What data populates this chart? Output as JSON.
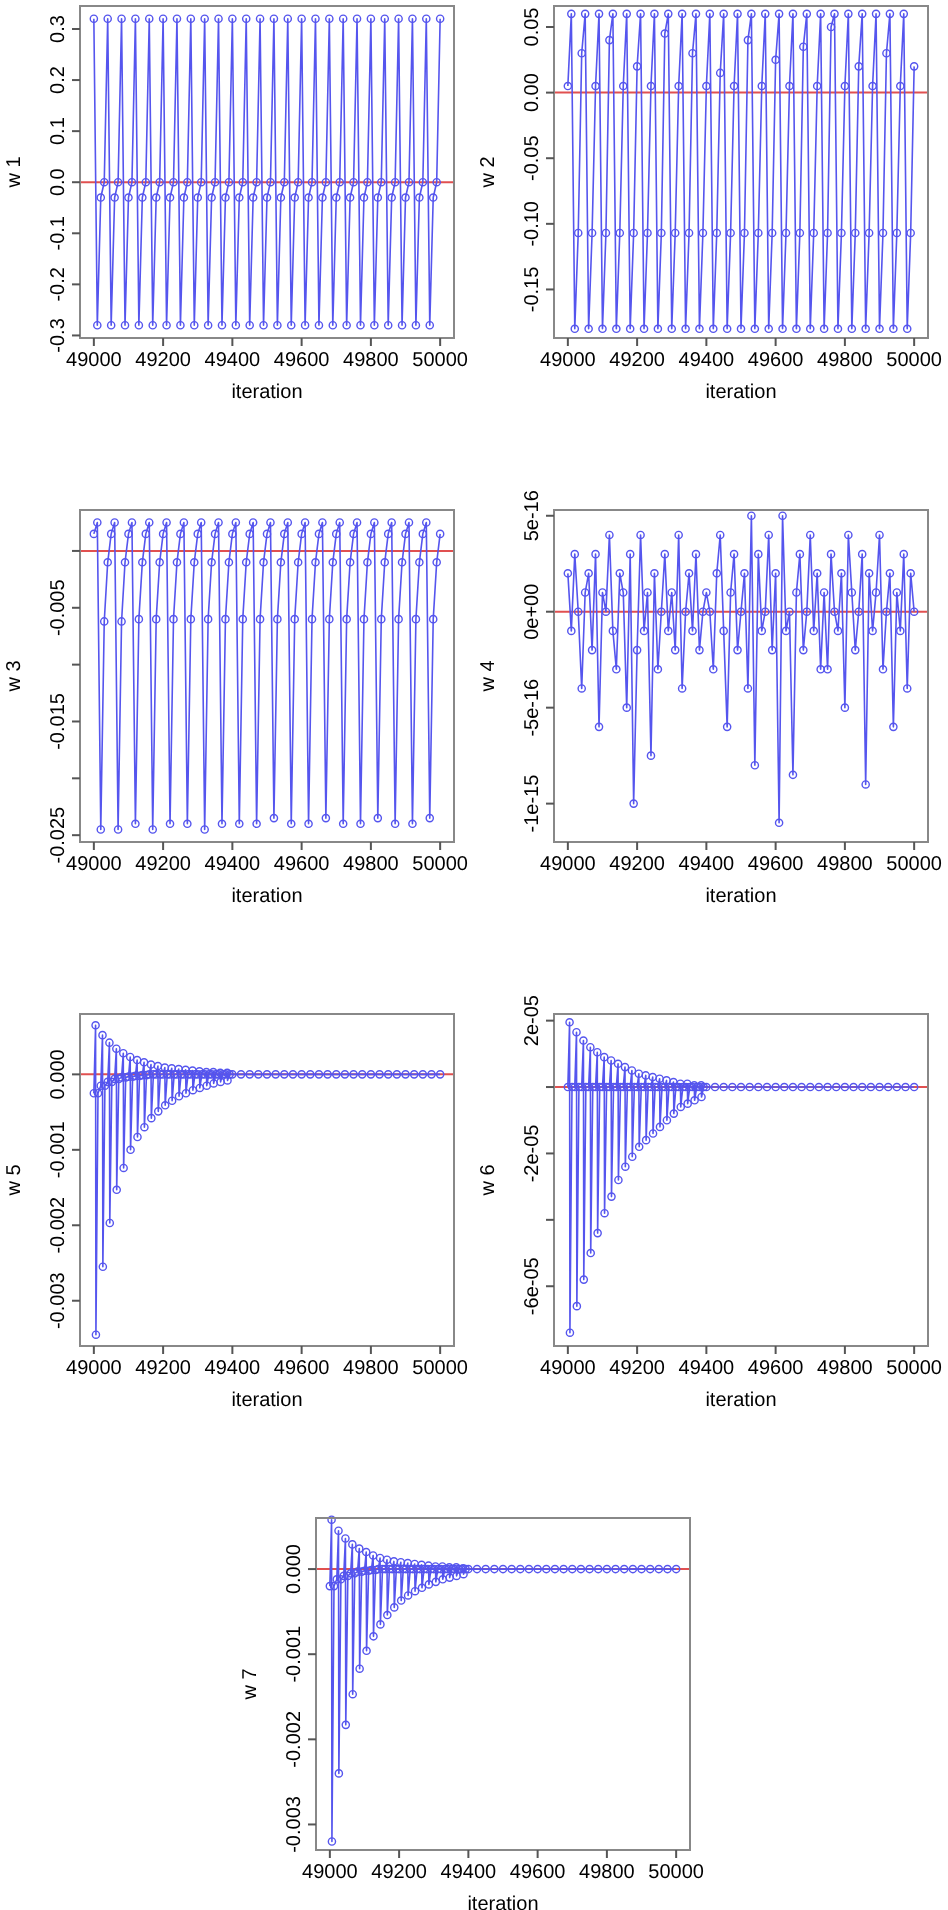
{
  "chart_data": [
    {
      "type": "line",
      "xlabel": "iteration",
      "ylabel": "w 1",
      "color": "#5555ee",
      "marker": "circle",
      "xlim": [
        48960,
        50040
      ],
      "xticks": [
        49000,
        49200,
        49400,
        49600,
        49800,
        50000
      ],
      "ylim": [
        -0.305,
        0.345
      ],
      "yticks": [
        {
          "value": -0.3,
          "label": "-0.3"
        },
        {
          "value": -0.2,
          "label": "-0.2"
        },
        {
          "value": -0.1,
          "label": "-0.1"
        },
        {
          "value": 0,
          "label": "0.0"
        },
        0.1,
        0.2,
        0.3
      ],
      "ref_lines": [
        {
          "axis": "y",
          "value": 0,
          "color": "#e05050"
        }
      ],
      "x": [
        49000,
        49010,
        49020,
        49030,
        49040,
        49050,
        49060,
        49070,
        49080,
        49090,
        49100,
        49110,
        49120,
        49130,
        49140,
        49150,
        49160,
        49170,
        49180,
        49190,
        49200,
        49210,
        49220,
        49230,
        49240,
        49250,
        49260,
        49270,
        49280,
        49290,
        49300,
        49310,
        49320,
        49330,
        49340,
        49350,
        49360,
        49370,
        49380,
        49390,
        49400,
        49410,
        49420,
        49430,
        49440,
        49450,
        49460,
        49470,
        49480,
        49490,
        49500,
        49510,
        49520,
        49530,
        49540,
        49550,
        49560,
        49570,
        49580,
        49590,
        49600,
        49610,
        49620,
        49630,
        49640,
        49650,
        49660,
        49670,
        49680,
        49690,
        49700,
        49710,
        49720,
        49730,
        49740,
        49750,
        49760,
        49770,
        49780,
        49790,
        49800,
        49810,
        49820,
        49830,
        49840,
        49850,
        49860,
        49870,
        49880,
        49890,
        49900,
        49910,
        49920,
        49930,
        49940,
        49950,
        49960,
        49970,
        49980,
        49990,
        50000
      ],
      "values": [
        0.32,
        -0.28,
        -0.03,
        0,
        0.32,
        -0.28,
        -0.03,
        0,
        0.32,
        -0.28,
        -0.03,
        0,
        0.32,
        -0.28,
        -0.03,
        0,
        0.32,
        -0.28,
        -0.03,
        0,
        0.32,
        -0.28,
        -0.03,
        0,
        0.32,
        -0.28,
        -0.03,
        0,
        0.32,
        -0.28,
        -0.03,
        0,
        0.32,
        -0.28,
        -0.03,
        0,
        0.32,
        -0.28,
        -0.03,
        0,
        0.32,
        -0.28,
        -0.03,
        0,
        0.32,
        -0.28,
        -0.03,
        0,
        0.32,
        -0.28,
        -0.03,
        0,
        0.32,
        -0.28,
        -0.03,
        0,
        0.32,
        -0.28,
        -0.03,
        0,
        0.32,
        -0.28,
        -0.03,
        0,
        0.32,
        -0.28,
        -0.03,
        0,
        0.32,
        -0.28,
        -0.03,
        0,
        0.32,
        -0.28,
        -0.03,
        0,
        0.32,
        -0.28,
        -0.03,
        0,
        0.32,
        -0.28,
        -0.03,
        0,
        0.32,
        -0.28,
        -0.03,
        0,
        0.32,
        -0.28,
        -0.03,
        0,
        0.32,
        -0.28,
        -0.03,
        0,
        0.32,
        -0.28,
        -0.03,
        0,
        0.32
      ]
    },
    {
      "type": "line",
      "xlabel": "iteration",
      "ylabel": "w 2",
      "color": "#5555ee",
      "marker": "circle",
      "xlim": [
        48960,
        50040
      ],
      "xticks": [
        49000,
        49200,
        49400,
        49600,
        49800,
        50000
      ],
      "ylim": [
        -0.187,
        0.066
      ],
      "yticks": [
        {
          "value": -0.15,
          "label": "-0.15"
        },
        {
          "value": -0.1,
          "label": "-0.10"
        },
        {
          "value": -0.05,
          "label": "-0.05"
        },
        {
          "value": 0,
          "label": "0.00"
        },
        0.05
      ],
      "ref_lines": [
        {
          "axis": "y",
          "value": 0,
          "color": "#e05050"
        }
      ],
      "x": [
        49000,
        49010,
        49020,
        49030,
        49040,
        49050,
        49060,
        49070,
        49080,
        49090,
        49100,
        49110,
        49120,
        49130,
        49140,
        49150,
        49160,
        49170,
        49180,
        49190,
        49200,
        49210,
        49220,
        49230,
        49240,
        49250,
        49260,
        49270,
        49280,
        49290,
        49300,
        49310,
        49320,
        49330,
        49340,
        49350,
        49360,
        49370,
        49380,
        49390,
        49400,
        49410,
        49420,
        49430,
        49440,
        49450,
        49460,
        49470,
        49480,
        49490,
        49500,
        49510,
        49520,
        49530,
        49540,
        49550,
        49560,
        49570,
        49580,
        49590,
        49600,
        49610,
        49620,
        49630,
        49640,
        49650,
        49660,
        49670,
        49680,
        49690,
        49700,
        49710,
        49720,
        49730,
        49740,
        49750,
        49760,
        49770,
        49780,
        49790,
        49800,
        49810,
        49820,
        49830,
        49840,
        49850,
        49860,
        49870,
        49880,
        49890,
        49900,
        49910,
        49920,
        49930,
        49940,
        49950,
        49960,
        49970,
        49980,
        49990,
        50000
      ],
      "values": [
        0.005,
        0.06,
        -0.18,
        -0.107,
        0.03,
        0.06,
        -0.18,
        -0.107,
        0.005,
        0.06,
        -0.18,
        -0.107,
        0.04,
        0.06,
        -0.18,
        -0.107,
        0.005,
        0.06,
        -0.18,
        -0.107,
        0.02,
        0.06,
        -0.18,
        -0.107,
        0.005,
        0.06,
        -0.18,
        -0.107,
        0.045,
        0.06,
        -0.18,
        -0.107,
        0.005,
        0.06,
        -0.18,
        -0.107,
        0.03,
        0.06,
        -0.18,
        -0.107,
        0.005,
        0.06,
        -0.18,
        -0.107,
        0.015,
        0.06,
        -0.18,
        -0.107,
        0.005,
        0.06,
        -0.18,
        -0.107,
        0.04,
        0.06,
        -0.18,
        -0.107,
        0.005,
        0.06,
        -0.18,
        -0.107,
        0.025,
        0.06,
        -0.18,
        -0.107,
        0.005,
        0.06,
        -0.18,
        -0.107,
        0.035,
        0.06,
        -0.18,
        -0.107,
        0.005,
        0.06,
        -0.18,
        -0.107,
        0.05,
        0.06,
        -0.18,
        -0.107,
        0.005,
        0.06,
        -0.18,
        -0.107,
        0.02,
        0.06,
        -0.18,
        -0.107,
        0.005,
        0.06,
        -0.18,
        -0.107,
        0.03,
        0.06,
        -0.18,
        -0.107,
        0.005,
        0.06,
        -0.18,
        -0.107,
        0.02
      ]
    },
    {
      "type": "line",
      "xlabel": "iteration",
      "ylabel": "w 3",
      "color": "#5555ee",
      "marker": "circle",
      "xlim": [
        48960,
        50040
      ],
      "xticks": [
        49000,
        49200,
        49400,
        49600,
        49800,
        50000
      ],
      "ylim": [
        -0.0256,
        0.0036
      ],
      "yticks": [
        {
          "value": -0.025,
          "label": "-0.025"
        },
        {
          "value": -0.02,
          "label": null
        },
        {
          "value": -0.015,
          "label": "-0.015"
        },
        {
          "value": -0.01,
          "label": null
        },
        {
          "value": -0.005,
          "label": "-0.005"
        },
        {
          "value": 0,
          "label": null
        }
      ],
      "ref_lines": [
        {
          "axis": "y",
          "value": 0,
          "color": "#e05050"
        }
      ],
      "x": [
        49000,
        49010,
        49020,
        49030,
        49040,
        49050,
        49060,
        49070,
        49080,
        49090,
        49100,
        49110,
        49120,
        49130,
        49140,
        49150,
        49160,
        49170,
        49180,
        49190,
        49200,
        49210,
        49220,
        49230,
        49240,
        49250,
        49260,
        49270,
        49280,
        49290,
        49300,
        49310,
        49320,
        49330,
        49340,
        49350,
        49360,
        49370,
        49380,
        49390,
        49400,
        49410,
        49420,
        49430,
        49440,
        49450,
        49460,
        49470,
        49480,
        49490,
        49500,
        49510,
        49520,
        49530,
        49540,
        49550,
        49560,
        49570,
        49580,
        49590,
        49600,
        49610,
        49620,
        49630,
        49640,
        49650,
        49660,
        49670,
        49680,
        49690,
        49700,
        49710,
        49720,
        49730,
        49740,
        49750,
        49760,
        49770,
        49780,
        49790,
        49800,
        49810,
        49820,
        49830,
        49840,
        49850,
        49860,
        49870,
        49880,
        49890,
        49900,
        49910,
        49920,
        49930,
        49940,
        49950,
        49960,
        49970,
        49980,
        49990,
        50000
      ],
      "values": [
        0.0015,
        0.0025,
        -0.0245,
        -0.0062,
        -0.001,
        0.0015,
        0.0025,
        -0.0245,
        -0.0062,
        -0.001,
        0.0015,
        0.0025,
        -0.024,
        -0.006,
        -0.001,
        0.0015,
        0.0025,
        -0.0245,
        -0.006,
        -0.001,
        0.0015,
        0.0025,
        -0.024,
        -0.006,
        -0.001,
        0.0015,
        0.0025,
        -0.024,
        -0.006,
        -0.001,
        0.0015,
        0.0025,
        -0.0245,
        -0.006,
        -0.001,
        0.0015,
        0.0025,
        -0.024,
        -0.006,
        -0.001,
        0.0015,
        0.0025,
        -0.024,
        -0.006,
        -0.001,
        0.0015,
        0.0025,
        -0.024,
        -0.006,
        -0.001,
        0.0015,
        0.0025,
        -0.0235,
        -0.006,
        -0.001,
        0.0015,
        0.0025,
        -0.024,
        -0.006,
        -0.001,
        0.0015,
        0.0025,
        -0.024,
        -0.006,
        -0.001,
        0.0015,
        0.0025,
        -0.0235,
        -0.006,
        -0.001,
        0.0015,
        0.0025,
        -0.024,
        -0.006,
        -0.001,
        0.0015,
        0.0025,
        -0.024,
        -0.006,
        -0.001,
        0.0015,
        0.0025,
        -0.0235,
        -0.006,
        -0.001,
        0.0015,
        0.0025,
        -0.024,
        -0.006,
        -0.001,
        0.0015,
        0.0025,
        -0.024,
        -0.006,
        -0.001,
        0.0015,
        0.0025,
        -0.0235,
        -0.006,
        -0.001,
        0.0015
      ]
    },
    {
      "type": "line",
      "xlabel": "iteration",
      "ylabel": "w 4",
      "color": "#5555ee",
      "marker": "circle",
      "xlim": [
        48960,
        50040
      ],
      "xticks": [
        49000,
        49200,
        49400,
        49600,
        49800,
        50000
      ],
      "ylim": [
        -1.2e-15,
        5.3e-16
      ],
      "yticks": [
        {
          "value": -1e-15,
          "label": "-1e-15"
        },
        {
          "value": -5e-16,
          "label": "-5e-16"
        },
        {
          "value": 0,
          "label": "0e+00"
        },
        {
          "value": 5e-16,
          "label": "5e-16"
        }
      ],
      "ref_lines": [
        {
          "axis": "y",
          "value": 0,
          "color": "#e05050"
        }
      ],
      "x": [
        49000,
        49010,
        49020,
        49030,
        49040,
        49050,
        49060,
        49070,
        49080,
        49090,
        49100,
        49110,
        49120,
        49130,
        49140,
        49150,
        49160,
        49170,
        49180,
        49190,
        49200,
        49210,
        49220,
        49230,
        49240,
        49250,
        49260,
        49270,
        49280,
        49290,
        49300,
        49310,
        49320,
        49330,
        49340,
        49350,
        49360,
        49370,
        49380,
        49390,
        49400,
        49410,
        49420,
        49430,
        49440,
        49450,
        49460,
        49470,
        49480,
        49490,
        49500,
        49510,
        49520,
        49530,
        49540,
        49550,
        49560,
        49570,
        49580,
        49590,
        49600,
        49610,
        49620,
        49630,
        49640,
        49650,
        49660,
        49670,
        49680,
        49690,
        49700,
        49710,
        49720,
        49730,
        49740,
        49750,
        49760,
        49770,
        49780,
        49790,
        49800,
        49810,
        49820,
        49830,
        49840,
        49850,
        49860,
        49870,
        49880,
        49890,
        49900,
        49910,
        49920,
        49930,
        49940,
        49950,
        49960,
        49970,
        49980,
        49990,
        50000
      ],
      "values": [
        2e-16,
        -1e-16,
        3e-16,
        0,
        -4e-16,
        1e-16,
        2e-16,
        -2e-16,
        3e-16,
        -6e-16,
        1e-16,
        0,
        4e-16,
        -1e-16,
        -3e-16,
        2e-16,
        1e-16,
        -5e-16,
        3e-16,
        -1e-15,
        -2e-16,
        4e-16,
        -1e-16,
        1e-16,
        -7.5e-16,
        2e-16,
        -3e-16,
        0,
        3e-16,
        -1e-16,
        1e-16,
        -2e-16,
        4e-16,
        -4e-16,
        0,
        2e-16,
        -1e-16,
        3e-16,
        -2e-16,
        0,
        1e-16,
        0,
        -3e-16,
        2e-16,
        4e-16,
        -1e-16,
        -6e-16,
        1e-16,
        3e-16,
        -2e-16,
        0,
        2e-16,
        -4e-16,
        5e-16,
        -8e-16,
        3e-16,
        -1e-16,
        0,
        4e-16,
        -2e-16,
        2e-16,
        -1.1e-15,
        5e-16,
        -1e-16,
        0,
        -8.5e-16,
        1e-16,
        3e-16,
        -2e-16,
        0,
        4e-16,
        -1e-16,
        2e-16,
        -3e-16,
        1e-16,
        -3e-16,
        3e-16,
        0,
        -1e-16,
        2e-16,
        -5e-16,
        4e-16,
        1e-16,
        -2e-16,
        0,
        3e-16,
        -9e-16,
        2e-16,
        -1e-16,
        1e-16,
        4e-16,
        -3e-16,
        0,
        2e-16,
        -6e-16,
        1e-16,
        -1e-16,
        3e-16,
        -4e-16,
        2e-16,
        0
      ]
    },
    {
      "type": "line",
      "xlabel": "iteration",
      "ylabel": "w 5",
      "color": "#5555ee",
      "marker": "circle",
      "xlim": [
        48960,
        50040
      ],
      "xticks": [
        49000,
        49200,
        49400,
        49600,
        49800,
        50000
      ],
      "ylim": [
        -0.0036,
        0.0008
      ],
      "yticks": [
        {
          "value": -0.003,
          "label": "-0.003"
        },
        {
          "value": -0.002,
          "label": "-0.002"
        },
        {
          "value": -0.001,
          "label": "-0.001"
        },
        {
          "value": 0,
          "label": "0.000"
        }
      ],
      "ref_lines": [
        {
          "axis": "y",
          "value": 0,
          "color": "#e05050"
        }
      ],
      "x": [
        49000,
        49005,
        49006,
        49012,
        49020,
        49025,
        49026,
        49032,
        49040,
        49045,
        49046,
        49052,
        49060,
        49065,
        49066,
        49072,
        49080,
        49085,
        49086,
        49092,
        49100,
        49105,
        49106,
        49112,
        49120,
        49125,
        49126,
        49132,
        49140,
        49145,
        49146,
        49152,
        49160,
        49165,
        49166,
        49172,
        49180,
        49185,
        49186,
        49192,
        49200,
        49205,
        49206,
        49212,
        49220,
        49225,
        49226,
        49232,
        49240,
        49245,
        49246,
        49252,
        49260,
        49265,
        49266,
        49272,
        49280,
        49285,
        49286,
        49292,
        49300,
        49305,
        49306,
        49312,
        49320,
        49325,
        49326,
        49332,
        49340,
        49345,
        49346,
        49352,
        49360,
        49365,
        49366,
        49372,
        49380,
        49385,
        49386,
        49392,
        49400,
        49425,
        49450,
        49475,
        49500,
        49525,
        49550,
        49575,
        49600,
        49625,
        49650,
        49675,
        49700,
        49725,
        49750,
        49775,
        49800,
        49825,
        49850,
        49875,
        49900,
        49925,
        49950,
        49975,
        50000
      ],
      "values": [
        -0.00025,
        0.00065,
        -0.00345,
        -0.00025,
        -0.00015,
        0.00052,
        -0.00255,
        -0.00015,
        -0.0001,
        0.00042,
        -0.00197,
        -0.0001,
        -6e-05,
        0.00034,
        -0.00153,
        -6e-05,
        -4e-05,
        0.00028,
        -0.00124,
        -4e-05,
        -3e-05,
        0.00023,
        -0.001,
        -3e-05,
        -2e-05,
        0.00019,
        -0.00083,
        -2e-05,
        -1e-05,
        0.00016,
        -0.0007,
        -1e-05,
        0,
        0.00013,
        -0.00058,
        0,
        0,
        0.00011,
        -0.00049,
        0,
        0,
        9e-05,
        -0.00041,
        0,
        0,
        8e-05,
        -0.00035,
        0,
        0,
        7e-05,
        -0.00029,
        0,
        0,
        6e-05,
        -0.00025,
        0,
        0,
        5e-05,
        -0.00021,
        0,
        0,
        4e-05,
        -0.00018,
        0,
        0,
        3e-05,
        -0.00015,
        0,
        0,
        3e-05,
        -0.00012,
        0,
        0,
        2e-05,
        -0.0001,
        0,
        0,
        2e-05,
        -8e-05,
        0,
        0,
        0,
        0,
        0,
        0,
        0,
        0,
        0,
        0,
        0,
        0,
        0,
        0,
        0,
        0,
        0,
        0,
        0,
        0,
        0,
        0,
        0,
        0,
        0,
        0
      ]
    },
    {
      "type": "line",
      "xlabel": "iteration",
      "ylabel": "w 6",
      "color": "#5555ee",
      "marker": "circle",
      "xlim": [
        48960,
        50040
      ],
      "xticks": [
        49000,
        49200,
        49400,
        49600,
        49800,
        50000
      ],
      "ylim": [
        -7.8e-05,
        2.2e-05
      ],
      "yticks": [
        {
          "value": -6e-05,
          "label": "-6e-05"
        },
        {
          "value": -4e-05,
          "label": null
        },
        {
          "value": -2e-05,
          "label": "-2e-05"
        },
        {
          "value": 0,
          "label": null
        },
        {
          "value": 2e-05,
          "label": "2e-05"
        }
      ],
      "ref_lines": [
        {
          "axis": "y",
          "value": 0,
          "color": "#e05050"
        }
      ],
      "x": [
        49000,
        49005,
        49006,
        49012,
        49020,
        49025,
        49026,
        49032,
        49040,
        49045,
        49046,
        49052,
        49060,
        49065,
        49066,
        49072,
        49080,
        49085,
        49086,
        49092,
        49100,
        49105,
        49106,
        49112,
        49120,
        49125,
        49126,
        49132,
        49140,
        49145,
        49146,
        49152,
        49160,
        49165,
        49166,
        49172,
        49180,
        49185,
        49186,
        49192,
        49200,
        49205,
        49206,
        49212,
        49220,
        49225,
        49226,
        49232,
        49240,
        49245,
        49246,
        49252,
        49260,
        49265,
        49266,
        49272,
        49280,
        49285,
        49286,
        49292,
        49300,
        49305,
        49306,
        49312,
        49320,
        49325,
        49326,
        49332,
        49340,
        49345,
        49346,
        49352,
        49360,
        49365,
        49366,
        49372,
        49380,
        49385,
        49386,
        49392,
        49400,
        49425,
        49450,
        49475,
        49500,
        49525,
        49550,
        49575,
        49600,
        49625,
        49650,
        49675,
        49700,
        49725,
        49750,
        49775,
        49800,
        49825,
        49850,
        49875,
        49900,
        49925,
        49950,
        49975,
        50000
      ],
      "values": [
        0,
        1.95e-05,
        -7.4e-05,
        0,
        0,
        1.65e-05,
        -6.6e-05,
        0,
        0,
        1.4e-05,
        -5.8e-05,
        0,
        0,
        1.2e-05,
        -5e-05,
        0,
        0,
        1.05e-05,
        -4.4e-05,
        0,
        0,
        9e-06,
        -3.8e-05,
        0,
        0,
        8e-06,
        -3.3e-05,
        0,
        0,
        7e-06,
        -2.8e-05,
        0,
        0,
        6e-06,
        -2.4e-05,
        0,
        0,
        5e-06,
        -2.1e-05,
        0,
        0,
        4e-06,
        -1.8e-05,
        0,
        0,
        3.5e-06,
        -1.6e-05,
        0,
        0,
        3e-06,
        -1.4e-05,
        0,
        0,
        2.5e-06,
        -1.2e-05,
        0,
        0,
        2e-06,
        -1e-05,
        0,
        0,
        1.5e-06,
        -8e-06,
        0,
        0,
        1e-06,
        -6e-06,
        0,
        0,
        1e-06,
        -5e-06,
        0,
        0,
        5e-07,
        -4e-06,
        0,
        0,
        5e-07,
        -3e-06,
        0,
        0,
        0,
        0,
        0,
        0,
        0,
        0,
        0,
        0,
        0,
        0,
        0,
        0,
        0,
        0,
        0,
        0,
        0,
        0,
        0,
        0,
        0,
        0,
        0,
        0
      ]
    },
    {
      "type": "line",
      "xlabel": "iteration",
      "ylabel": "w 7",
      "color": "#5555ee",
      "marker": "circle",
      "xlim": [
        48960,
        50040
      ],
      "xticks": [
        49000,
        49200,
        49400,
        49600,
        49800,
        50000
      ],
      "ylim": [
        -0.0033,
        0.0006
      ],
      "yticks": [
        {
          "value": -0.003,
          "label": "-0.003"
        },
        {
          "value": -0.002,
          "label": "-0.002"
        },
        {
          "value": -0.001,
          "label": "-0.001"
        },
        {
          "value": 0,
          "label": "0.000"
        }
      ],
      "ref_lines": [
        {
          "axis": "y",
          "value": 0,
          "color": "#e05050"
        }
      ],
      "x": [
        49000,
        49005,
        49006,
        49012,
        49020,
        49025,
        49026,
        49032,
        49040,
        49045,
        49046,
        49052,
        49060,
        49065,
        49066,
        49072,
        49080,
        49085,
        49086,
        49092,
        49100,
        49105,
        49106,
        49112,
        49120,
        49125,
        49126,
        49132,
        49140,
        49145,
        49146,
        49152,
        49160,
        49165,
        49166,
        49172,
        49180,
        49185,
        49186,
        49192,
        49200,
        49205,
        49206,
        49212,
        49220,
        49225,
        49226,
        49232,
        49240,
        49245,
        49246,
        49252,
        49260,
        49265,
        49266,
        49272,
        49280,
        49285,
        49286,
        49292,
        49300,
        49305,
        49306,
        49312,
        49320,
        49325,
        49326,
        49332,
        49340,
        49345,
        49346,
        49352,
        49360,
        49365,
        49366,
        49372,
        49380,
        49385,
        49386,
        49392,
        49400,
        49425,
        49450,
        49475,
        49500,
        49525,
        49550,
        49575,
        49600,
        49625,
        49650,
        49675,
        49700,
        49725,
        49750,
        49775,
        49800,
        49825,
        49850,
        49875,
        49900,
        49925,
        49950,
        49975,
        50000
      ],
      "values": [
        -0.0002,
        0.00058,
        -0.0032,
        -0.0002,
        -0.00012,
        0.00045,
        -0.0024,
        -0.00012,
        -8e-05,
        0.00036,
        -0.00183,
        -8e-05,
        -5e-05,
        0.00029,
        -0.00147,
        -5e-05,
        -3e-05,
        0.00024,
        -0.00117,
        -3e-05,
        -2e-05,
        0.0002,
        -0.00096,
        -2e-05,
        -1e-05,
        0.00016,
        -0.00079,
        -1e-05,
        0,
        0.00013,
        -0.00065,
        0,
        0,
        0.00011,
        -0.00054,
        0,
        0,
        9e-05,
        -0.00045,
        0,
        0,
        8e-05,
        -0.00037,
        0,
        0,
        7e-05,
        -0.00031,
        0,
        0,
        6e-05,
        -0.00026,
        0,
        0,
        5e-05,
        -0.00022,
        0,
        0,
        4e-05,
        -0.00018,
        0,
        0,
        3e-05,
        -0.00015,
        0,
        0,
        3e-05,
        -0.00012,
        0,
        0,
        2e-05,
        -0.0001,
        0,
        0,
        2e-05,
        -8e-05,
        0,
        0,
        1e-05,
        -6e-05,
        0,
        0,
        0,
        0,
        0,
        0,
        0,
        0,
        0,
        0,
        0,
        0,
        0,
        0,
        0,
        0,
        0,
        0,
        0,
        0,
        0,
        0,
        0,
        0,
        0,
        0
      ]
    }
  ]
}
